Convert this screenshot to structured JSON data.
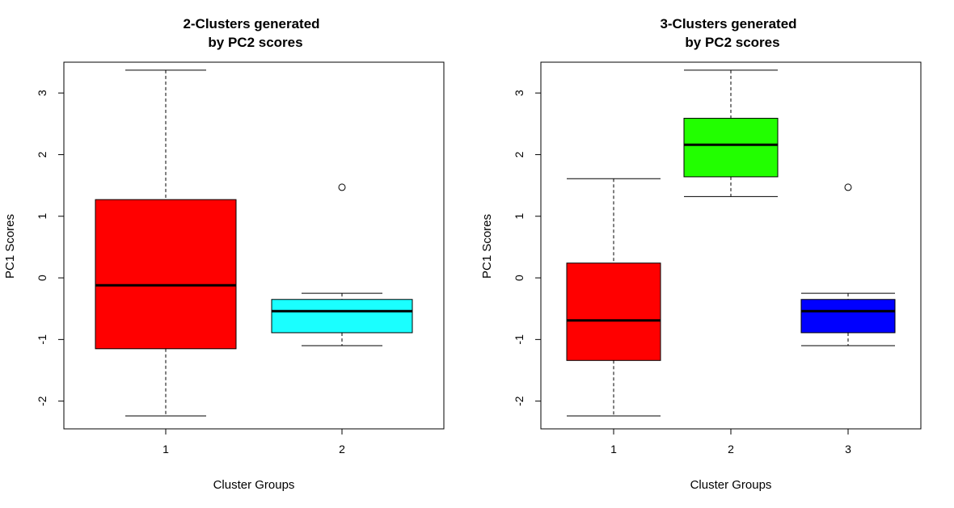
{
  "chart_data": [
    {
      "type": "boxplot",
      "title": [
        "2-Clusters generated",
        "by PC2 scores"
      ],
      "xlabel": "Cluster Groups",
      "ylabel": "PC1 Scores",
      "ylim": [
        -2.45,
        3.5
      ],
      "yticks": [
        -2,
        -1,
        0,
        1,
        2,
        3
      ],
      "categories": [
        "1",
        "2"
      ],
      "colors": [
        "#ff0000",
        "#1affff"
      ],
      "boxes": [
        {
          "category": "1",
          "whisker_low": -2.24,
          "q1": -1.15,
          "median": -0.12,
          "q3": 1.27,
          "whisker_high": 3.37,
          "outliers": []
        },
        {
          "category": "2",
          "whisker_low": -1.1,
          "q1": -0.89,
          "median": -0.54,
          "q3": -0.35,
          "whisker_high": -0.25,
          "outliers": [
            1.47
          ]
        }
      ]
    },
    {
      "type": "boxplot",
      "title": [
        "3-Clusters generated",
        "by PC2 scores"
      ],
      "xlabel": "Cluster Groups",
      "ylabel": "PC1 Scores",
      "ylim": [
        -2.45,
        3.5
      ],
      "yticks": [
        -2,
        -1,
        0,
        1,
        2,
        3
      ],
      "categories": [
        "1",
        "2",
        "3"
      ],
      "colors": [
        "#ff0000",
        "#22ff00",
        "#0000ff"
      ],
      "boxes": [
        {
          "category": "1",
          "whisker_low": -2.24,
          "q1": -1.34,
          "median": -0.69,
          "q3": 0.24,
          "whisker_high": 1.61,
          "outliers": []
        },
        {
          "category": "2",
          "whisker_low": 1.32,
          "q1": 1.64,
          "median": 2.16,
          "q3": 2.59,
          "whisker_high": 3.37,
          "outliers": []
        },
        {
          "category": "3",
          "whisker_low": -1.1,
          "q1": -0.89,
          "median": -0.54,
          "q3": -0.35,
          "whisker_high": -0.25,
          "outliers": [
            1.47
          ]
        }
      ]
    }
  ]
}
